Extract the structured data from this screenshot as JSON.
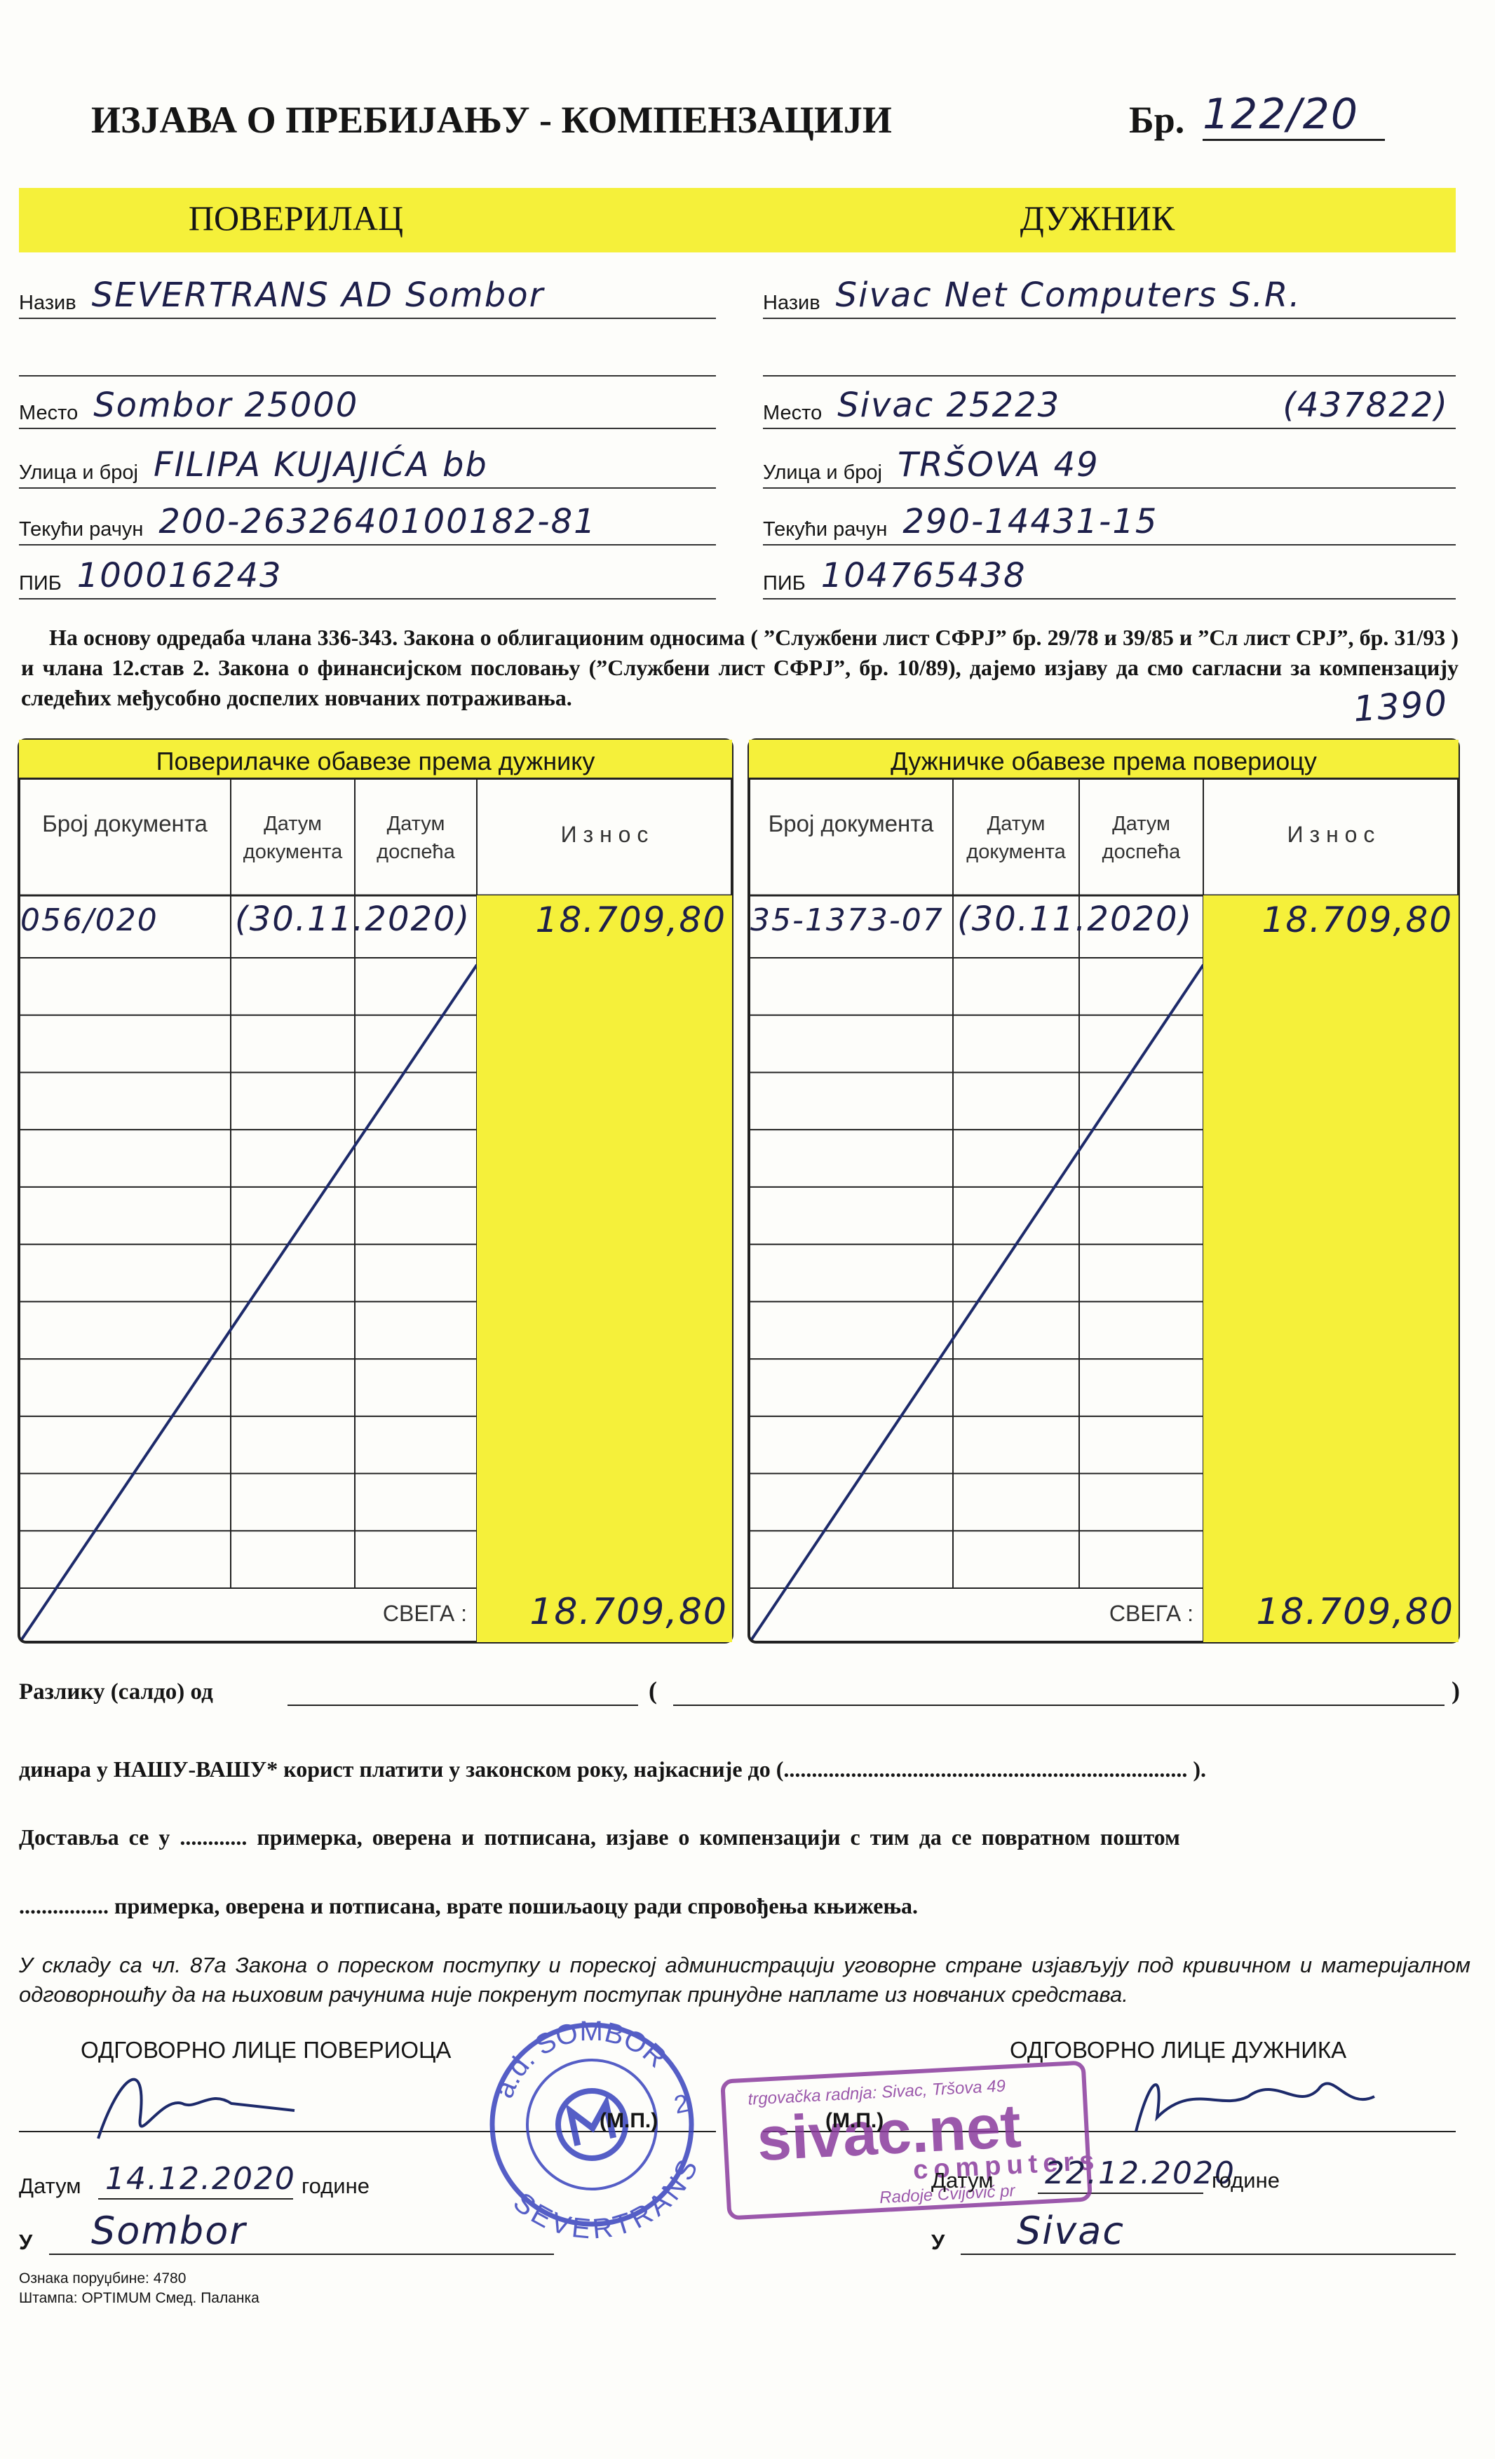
{
  "header": {
    "title": "ИЗЈАВА О ПРЕБИЈАЊУ - КОМПЕНЗАЦИЈИ",
    "number_label": "Бр.",
    "number": "122/20"
  },
  "parties": [
    {
      "heading": "ПОВЕРИЛАЦ",
      "fields": [
        {
          "label": "Назив",
          "value": "SEVERTRANS AD Sombor"
        },
        {
          "label": "Место",
          "value": "Sombor 25000"
        },
        {
          "label": "Улица и број",
          "value": "FILIPA KUJAJIĆA bb"
        },
        {
          "label": "Текући рачун",
          "value": "200-2632640100182-81"
        },
        {
          "label": "ПИБ",
          "value": "100016243"
        }
      ]
    },
    {
      "heading": "ДУЖНИК",
      "fields": [
        {
          "label": "Назив",
          "value": "Sivac Net Computers S.R."
        },
        {
          "label": "Место",
          "value": "Sivac 25223",
          "note": "(437822)"
        },
        {
          "label": "Улица и број",
          "value": "TRŠOVA 49"
        },
        {
          "label": "Текући рачун",
          "value": "290-14431-15"
        },
        {
          "label": "ПИБ",
          "value": "104765438"
        }
      ]
    }
  ],
  "legal_basis": {
    "text": "На основу одредаба члана 336-343. Закона о облигационим односима ( ”Службени лист СФРЈ” бр. 29/78 и 39/85 и ”Сл лист СРЈ”, бр. 31/93 ) и члана 12.став 2. Закона о финансијском пословању (”Службени лист СФРЈ”, бр. 10/89), дајемо изјаву да смо сагласни за компензацију следећих међусобно доспелих новчаних потраживања.",
    "handwritten_note": "1390"
  },
  "tables": [
    {
      "heading": "Поверилачке обавезе према дужнику",
      "columns": [
        "Број документа",
        "Датум документа",
        "Датум доспећа",
        "И з н о с"
      ],
      "rows": [
        {
          "document_no": "056/020",
          "document_date": "(30.11.2020)",
          "amount": "18.709,80"
        }
      ],
      "total_label": "СВЕГА :",
      "total": "18.709,80"
    },
    {
      "heading": "Дужничке обавезе према повериоцу",
      "columns": [
        "Број документа",
        "Датум документа",
        "Датум доспећа",
        "И з н о с"
      ],
      "rows": [
        {
          "document_no": "35-1373-07",
          "document_date": "(30.11.2020)",
          "amount": "18.709,80"
        }
      ],
      "total_label": "СВЕГА :",
      "total": "18.709,80"
    }
  ],
  "settlement": {
    "balance_label": "Разлику (салдо) од",
    "paren_open": "(",
    "paren_close": ")",
    "payment_line": "динара у НАШУ-ВАШУ* корист платити у законском року, најкасније до (........................................................................ ).",
    "delivery_line_1": "Доставља се у ............ примерка, оверена и потписана, изјаве о компензацији с тим да се повратном поштом",
    "delivery_line_2": "................ примерка, оверена и потписана, врате пошиљаоцу ради спровођења књижења.",
    "tax_statement": "У складу са чл. 87а Закона о пореском поступку и пореској администрацији уговорне стране изјављују под кривичном и материјалном одговорношћу да на њиховим рачунима није покренут поступак принудне наплате из новчаних средстава."
  },
  "signatures": [
    {
      "title": "ОДГОВОРНО ЛИЦЕ ПОВЕРИОЦА",
      "seal": "(М.П.)",
      "date_label": "Датум",
      "date": "14.12.2020",
      "year_suffix": "године",
      "place_label": "У",
      "place": "Sombor"
    },
    {
      "title": "ОДГОВОРНО ЛИЦЕ ДУЖНИКА",
      "seal": "(М.П.)",
      "date_label": "Датум",
      "date": "22.12.2020",
      "year_suffix": "године",
      "place_label": "У",
      "place": "Sivac"
    }
  ],
  "stamps": {
    "creditor": {
      "top": "a.d. SOMBOR",
      "bottom": "SEVERTRANS",
      "number": "2"
    },
    "debtor": {
      "top": "trgovačka radnja: Sivac, Tršova 49",
      "brand": "sivac.net",
      "sub": "computers",
      "bottom": "Radoje Cvijović pr"
    }
  },
  "footer": {
    "order": "Ознака поруџбине: 4780",
    "printer": "Штампа: OPTIMUM Смед. Паланка"
  }
}
